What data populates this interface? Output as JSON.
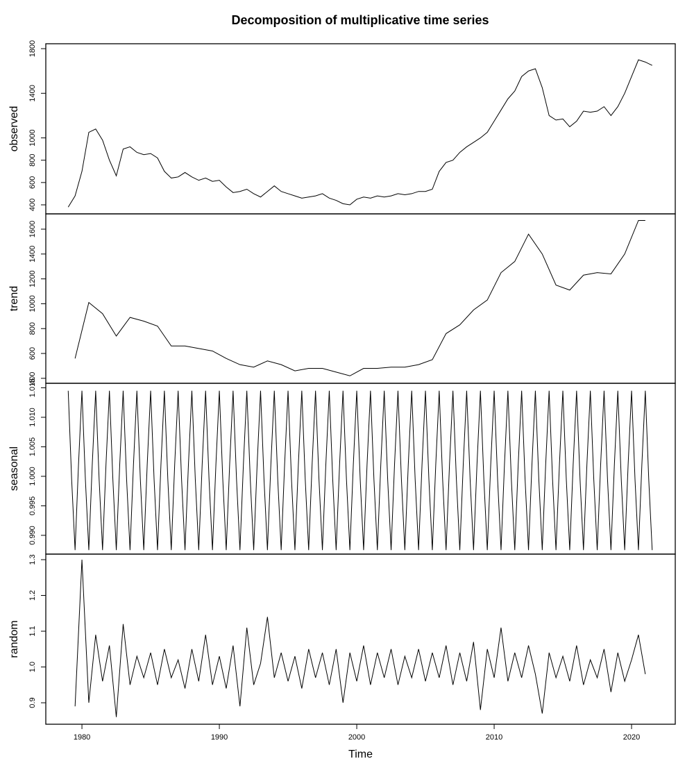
{
  "title": "Decomposition of multiplicative time series",
  "chart_data": [
    {
      "type": "line",
      "ylabel": "observed",
      "xlim": [
        1977.37,
        2023.18
      ],
      "ylim": [
        319,
        1844
      ],
      "yticks": [
        400,
        600,
        800,
        1000,
        1400,
        1800
      ],
      "x": [
        1979,
        1979.5,
        1980,
        1980.5,
        1981,
        1981.5,
        1982,
        1982.5,
        1983,
        1983.5,
        1984,
        1984.5,
        1985,
        1985.5,
        1986,
        1986.5,
        1987,
        1987.5,
        1988,
        1988.5,
        1989,
        1989.5,
        1990,
        1990.5,
        1991,
        1991.5,
        1992,
        1992.5,
        1993,
        1993.5,
        1994,
        1994.5,
        1995,
        1995.5,
        1996,
        1996.5,
        1997,
        1997.5,
        1998,
        1998.5,
        1999,
        1999.5,
        2000,
        2000.5,
        2001,
        2001.5,
        2002,
        2002.5,
        2003,
        2003.5,
        2004,
        2004.5,
        2005,
        2005.5,
        2006,
        2006.5,
        2007,
        2007.5,
        2008,
        2008.5,
        2009,
        2009.5,
        2010,
        2010.5,
        2011,
        2011.5,
        2012,
        2012.5,
        2013,
        2013.5,
        2014,
        2014.5,
        2015,
        2015.5,
        2016,
        2016.5,
        2017,
        2017.5,
        2018,
        2018.5,
        2019,
        2019.5,
        2020,
        2020.5,
        2021,
        2021.5
      ],
      "values": [
        380,
        480,
        700,
        1050,
        1080,
        980,
        800,
        660,
        900,
        920,
        870,
        850,
        860,
        820,
        700,
        640,
        650,
        690,
        650,
        620,
        640,
        610,
        620,
        560,
        510,
        520,
        540,
        500,
        470,
        520,
        570,
        520,
        500,
        480,
        460,
        470,
        480,
        500,
        460,
        440,
        410,
        400,
        450,
        470,
        460,
        480,
        470,
        480,
        500,
        490,
        500,
        520,
        520,
        540,
        700,
        780,
        800,
        870,
        920,
        960,
        1000,
        1050,
        1150,
        1250,
        1350,
        1420,
        1550,
        1600,
        1620,
        1450,
        1200,
        1160,
        1170,
        1100,
        1150,
        1240,
        1230,
        1240,
        1280,
        1200,
        1280,
        1400,
        1550,
        1700,
        1680,
        1650
      ]
    },
    {
      "type": "line",
      "ylabel": "trend",
      "xlim": [
        1977.37,
        2023.18
      ],
      "ylim": [
        360,
        1723
      ],
      "yticks": [
        400,
        600,
        800,
        1000,
        1200,
        1400,
        1600
      ],
      "x": [
        1979.5,
        1980.5,
        1981.5,
        1982.5,
        1983.5,
        1984.5,
        1985.5,
        1986.5,
        1987.5,
        1988.5,
        1989.5,
        1990.5,
        1991.5,
        1992.5,
        1993.5,
        1994.5,
        1995.5,
        1996.5,
        1997.5,
        1998.5,
        1999.5,
        2000.5,
        2001.5,
        2002.5,
        2003.5,
        2004.5,
        2005.5,
        2006.5,
        2007.5,
        2008.5,
        2009.5,
        2010.5,
        2011.5,
        2012.5,
        2013.5,
        2014.5,
        2015.5,
        2016.5,
        2017.5,
        2018.5,
        2019.5,
        2020.5,
        2021
      ],
      "values": [
        560,
        1010,
        920,
        740,
        890,
        860,
        820,
        660,
        660,
        640,
        620,
        560,
        510,
        490,
        540,
        510,
        460,
        480,
        480,
        450,
        420,
        480,
        480,
        490,
        490,
        510,
        550,
        760,
        830,
        950,
        1030,
        1250,
        1340,
        1560,
        1400,
        1150,
        1110,
        1230,
        1250,
        1240,
        1400,
        1670,
        1670
      ]
    },
    {
      "type": "line",
      "ylabel": "seasonal",
      "xlim": [
        1977.37,
        2023.18
      ],
      "ylim": [
        0.98682,
        1.01576
      ],
      "yticks": [
        {
          "value": 0.99,
          "label": "0.990"
        },
        {
          "value": 0.995,
          "label": "0.995"
        },
        {
          "value": 1,
          "label": "1.000"
        },
        {
          "value": 1.005,
          "label": "1.005"
        },
        {
          "value": 1.01,
          "label": "1.010"
        },
        {
          "value": 1.015,
          "label": "1.015"
        }
      ],
      "x": [
        1979,
        1979.25,
        1979.5,
        1979.75,
        1980,
        1980.25,
        1980.5,
        1980.75,
        1981,
        1981.25,
        1981.5,
        1981.75,
        1982,
        1982.25,
        1982.5,
        1982.75,
        1983,
        1983.25,
        1983.5,
        1983.75,
        1984,
        1984.25,
        1984.5,
        1984.75,
        1985,
        1985.25,
        1985.5,
        1985.75,
        1986,
        1986.25,
        1986.5,
        1986.75,
        1987,
        1987.25,
        1987.5,
        1987.75,
        1988,
        1988.25,
        1988.5,
        1988.75,
        1989,
        1989.25,
        1989.5,
        1989.75,
        1990,
        1990.25,
        1990.5,
        1990.75,
        1991,
        1991.25,
        1991.5,
        1991.75,
        1992,
        1992.25,
        1992.5,
        1992.75,
        1993,
        1993.25,
        1993.5,
        1993.75,
        1994,
        1994.25,
        1994.5,
        1994.75,
        1995,
        1995.25,
        1995.5,
        1995.75,
        1996,
        1996.25,
        1996.5,
        1996.75,
        1997,
        1997.25,
        1997.5,
        1997.75,
        1998,
        1998.25,
        1998.5,
        1998.75,
        1999,
        1999.25,
        1999.5,
        1999.75,
        2000,
        2000.25,
        2000.5,
        2000.75,
        2001,
        2001.25,
        2001.5,
        2001.75,
        2002,
        2002.25,
        2002.5,
        2002.75,
        2003,
        2003.25,
        2003.5,
        2003.75,
        2004,
        2004.25,
        2004.5,
        2004.75,
        2005,
        2005.25,
        2005.5,
        2005.75,
        2006,
        2006.25,
        2006.5,
        2006.75,
        2007,
        2007.25,
        2007.5,
        2007.75,
        2008,
        2008.25,
        2008.5,
        2008.75,
        2009,
        2009.25,
        2009.5,
        2009.75,
        2010,
        2010.25,
        2010.5,
        2010.75,
        2011,
        2011.25,
        2011.5,
        2011.75,
        2012,
        2012.25,
        2012.5,
        2012.75,
        2013,
        2013.25,
        2013.5,
        2013.75,
        2014,
        2014.25,
        2014.5,
        2014.75,
        2015,
        2015.25,
        2015.5,
        2015.75,
        2016,
        2016.25,
        2016.5,
        2016.75,
        2017,
        2017.25,
        2017.5,
        2017.75,
        2018,
        2018.25,
        2018.5,
        2018.75,
        2019,
        2019.25,
        2019.5,
        2019.75,
        2020,
        2020.25,
        2020.5,
        2020.75,
        2021,
        2021.25,
        2021.5
      ],
      "values": [
        1.0145,
        0.9995,
        0.9875,
        1.002,
        1.0145,
        0.9995,
        0.9875,
        1.002,
        1.0145,
        0.9995,
        0.9875,
        1.002,
        1.0145,
        0.9995,
        0.9875,
        1.002,
        1.0145,
        0.9995,
        0.9875,
        1.002,
        1.0145,
        0.9995,
        0.9875,
        1.002,
        1.0145,
        0.9995,
        0.9875,
        1.002,
        1.0145,
        0.9995,
        0.9875,
        1.002,
        1.0145,
        0.9995,
        0.9875,
        1.002,
        1.0145,
        0.9995,
        0.9875,
        1.002,
        1.0145,
        0.9995,
        0.9875,
        1.002,
        1.0145,
        0.9995,
        0.9875,
        1.002,
        1.0145,
        0.9995,
        0.9875,
        1.002,
        1.0145,
        0.9995,
        0.9875,
        1.002,
        1.0145,
        0.9995,
        0.9875,
        1.002,
        1.0145,
        0.9995,
        0.9875,
        1.002,
        1.0145,
        0.9995,
        0.9875,
        1.002,
        1.0145,
        0.9995,
        0.9875,
        1.002,
        1.0145,
        0.9995,
        0.9875,
        1.002,
        1.0145,
        0.9995,
        0.9875,
        1.002,
        1.0145,
        0.9995,
        0.9875,
        1.002,
        1.0145,
        0.9995,
        0.9875,
        1.002,
        1.0145,
        0.9995,
        0.9875,
        1.002,
        1.0145,
        0.9995,
        0.9875,
        1.002,
        1.0145,
        0.9995,
        0.9875,
        1.002,
        1.0145,
        0.9995,
        0.9875,
        1.002,
        1.0145,
        0.9995,
        0.9875,
        1.002,
        1.0145,
        0.9995,
        0.9875,
        1.002,
        1.0145,
        0.9995,
        0.9875,
        1.002,
        1.0145,
        0.9995,
        0.9875,
        1.002,
        1.0145,
        0.9995,
        0.9875,
        1.002,
        1.0145,
        0.9995,
        0.9875,
        1.002,
        1.0145,
        0.9995,
        0.9875,
        1.002,
        1.0145,
        0.9995,
        0.9875,
        1.002,
        1.0145,
        0.9995,
        0.9875,
        1.002,
        1.0145,
        0.9995,
        0.9875,
        1.002,
        1.0145,
        0.9995,
        0.9875,
        1.002,
        1.0145,
        0.9995,
        0.9875,
        1.002,
        1.0145,
        0.9995,
        0.9875,
        1.002,
        1.0145,
        0.9995,
        0.9875,
        1.002,
        1.0145,
        0.9995,
        0.9875,
        1.002,
        1.0145,
        0.9995,
        0.9875,
        1.002,
        1.0145,
        0.9995,
        0.9875
      ]
    },
    {
      "type": "line",
      "ylabel": "random",
      "xlabel": "Time",
      "xlim": [
        1977.37,
        2023.18
      ],
      "xticks": [
        1980,
        1990,
        2000,
        2010,
        2020
      ],
      "ylim": [
        0.84,
        1.3155
      ],
      "yticks": [
        0.9,
        {
          "value": 1,
          "label": "1.0"
        },
        1.1,
        1.2,
        1.3
      ],
      "x": [
        1979.5,
        1980,
        1980.5,
        1981,
        1981.5,
        1982,
        1982.5,
        1983,
        1983.5,
        1984,
        1984.5,
        1985,
        1985.5,
        1986,
        1986.5,
        1987,
        1987.5,
        1988,
        1988.5,
        1989,
        1989.5,
        1990,
        1990.5,
        1991,
        1991.5,
        1992,
        1992.5,
        1993,
        1993.5,
        1994,
        1994.5,
        1995,
        1995.5,
        1996,
        1996.5,
        1997,
        1997.5,
        1998,
        1998.5,
        1999,
        1999.5,
        2000,
        2000.5,
        2001,
        2001.5,
        2002,
        2002.5,
        2003,
        2003.5,
        2004,
        2004.5,
        2005,
        2005.5,
        2006,
        2006.5,
        2007,
        2007.5,
        2008,
        2008.5,
        2009,
        2009.5,
        2010,
        2010.5,
        2011,
        2011.5,
        2012,
        2012.5,
        2013,
        2013.5,
        2014,
        2014.5,
        2015,
        2015.5,
        2016,
        2016.5,
        2017,
        2017.5,
        2018,
        2018.5,
        2019,
        2019.5,
        2020,
        2020.5,
        2021
      ],
      "values": [
        0.89,
        1.3,
        0.9,
        1.09,
        0.96,
        1.06,
        0.86,
        1.12,
        0.95,
        1.03,
        0.97,
        1.04,
        0.95,
        1.05,
        0.97,
        1.02,
        0.94,
        1.05,
        0.96,
        1.09,
        0.95,
        1.03,
        0.94,
        1.06,
        0.89,
        1.11,
        0.95,
        1.01,
        1.14,
        0.97,
        1.04,
        0.96,
        1.03,
        0.94,
        1.05,
        0.97,
        1.04,
        0.95,
        1.05,
        0.9,
        1.04,
        0.96,
        1.06,
        0.95,
        1.04,
        0.97,
        1.05,
        0.95,
        1.03,
        0.97,
        1.05,
        0.96,
        1.04,
        0.97,
        1.06,
        0.95,
        1.04,
        0.96,
        1.07,
        0.88,
        1.05,
        0.97,
        1.11,
        0.96,
        1.04,
        0.97,
        1.06,
        0.98,
        0.87,
        1.04,
        0.97,
        1.03,
        0.96,
        1.06,
        0.95,
        1.02,
        0.97,
        1.05,
        0.93,
        1.04,
        0.96,
        1.02,
        1.09,
        0.98
      ]
    }
  ]
}
